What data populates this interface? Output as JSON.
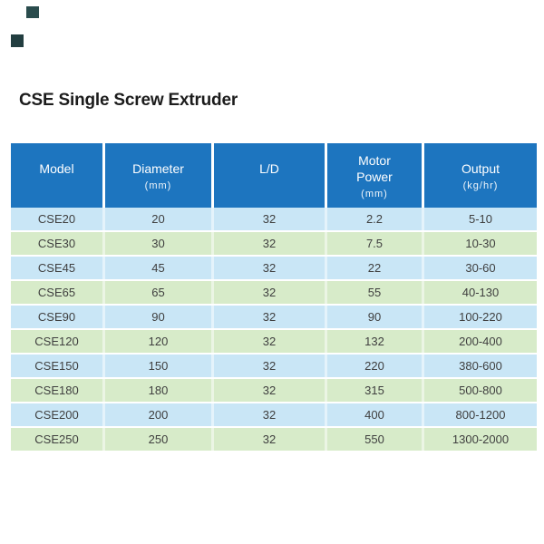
{
  "decor": {
    "square_top_color": "#2a4c4d",
    "square_bottom_color": "#223e40"
  },
  "title": "CSE Single Screw Extruder",
  "table": {
    "header_bg": "#1d75bf",
    "header_text_color": "#ffffff",
    "row_color_light_blue": "#c9e6f6",
    "row_color_light_green": "#d7ebc9",
    "body_text_color": "#3f3f3f",
    "columns": [
      {
        "label": "Model",
        "unit": ""
      },
      {
        "label": "Diameter",
        "unit": "(mm)"
      },
      {
        "label": "L/D",
        "unit": ""
      },
      {
        "label": "Motor Power",
        "unit": "(mm)"
      },
      {
        "label": "Output",
        "unit": "(kg/hr)"
      }
    ],
    "rows": [
      [
        "CSE20",
        "20",
        "32",
        "2.2",
        "5-10"
      ],
      [
        "CSE30",
        "30",
        "32",
        "7.5",
        "10-30"
      ],
      [
        "CSE45",
        "45",
        "32",
        "22",
        "30-60"
      ],
      [
        "CSE65",
        "65",
        "32",
        "55",
        "40-130"
      ],
      [
        "CSE90",
        "90",
        "32",
        "90",
        "100-220"
      ],
      [
        "CSE120",
        "120",
        "32",
        "132",
        "200-400"
      ],
      [
        "CSE150",
        "150",
        "32",
        "220",
        "380-600"
      ],
      [
        "CSE180",
        "180",
        "32",
        "315",
        "500-800"
      ],
      [
        "CSE200",
        "200",
        "32",
        "400",
        "800-1200"
      ],
      [
        "CSE250",
        "250",
        "32",
        "550",
        "1300-2000"
      ]
    ]
  }
}
